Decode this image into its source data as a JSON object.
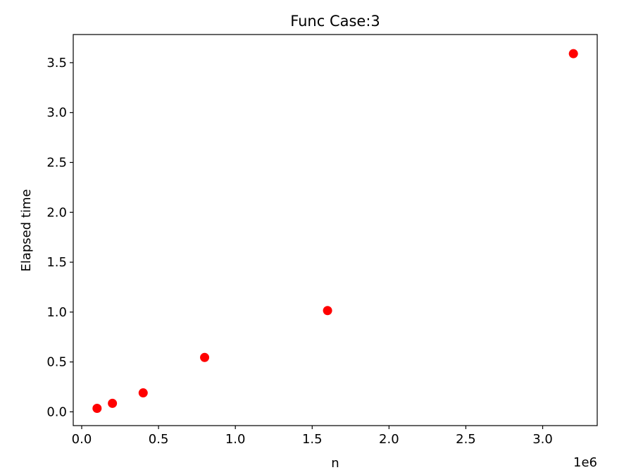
{
  "chart_data": {
    "type": "scatter",
    "title": "Func Case:3",
    "xlabel": "n",
    "ylabel": "Elapsed time",
    "x_offset_text": "1e6",
    "x_ticks": [
      0.0,
      0.5,
      1.0,
      1.5,
      2.0,
      2.5,
      3.0
    ],
    "x_tick_labels": [
      "0.0",
      "0.5",
      "1.0",
      "1.5",
      "2.0",
      "2.5",
      "3.0"
    ],
    "y_ticks": [
      0.0,
      0.5,
      1.0,
      1.5,
      2.0,
      2.5,
      3.0,
      3.5
    ],
    "y_tick_labels": [
      "0.0",
      "0.5",
      "1.0",
      "1.5",
      "2.0",
      "2.5",
      "3.0",
      "3.5"
    ],
    "xlim": [
      -0.055,
      3.355
    ],
    "ylim": [
      -0.138,
      3.782
    ],
    "grid": false,
    "series": [
      {
        "color": "#ff0000",
        "x": [
          0.1,
          0.2,
          0.4,
          0.8,
          1.6,
          3.2
        ],
        "y": [
          0.035,
          0.085,
          0.19,
          0.545,
          1.015,
          3.59
        ]
      }
    ]
  }
}
